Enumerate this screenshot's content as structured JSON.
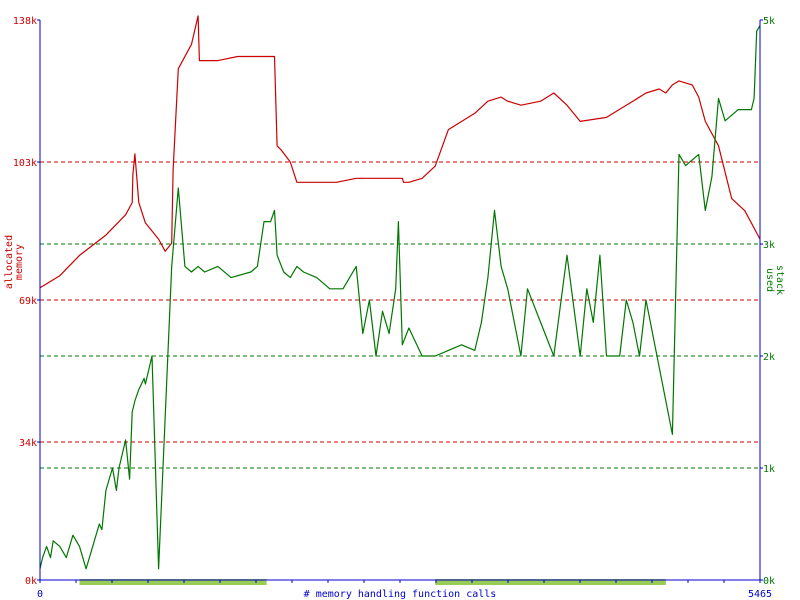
{
  "chart_data": {
    "type": "line",
    "title": "",
    "xlabel": "# memory handling function calls",
    "xlim": [
      0,
      5465
    ],
    "x_ticks": [
      "0",
      "5465"
    ],
    "left_axis": {
      "label": "allocated memory",
      "label_lines": [
        "allocated",
        "memory"
      ],
      "range_k": [
        0,
        138
      ],
      "ticks": [
        {
          "value": 0,
          "label": "0k"
        },
        {
          "value": 34,
          "label": "34k"
        },
        {
          "value": 69,
          "label": "69k"
        },
        {
          "value": 103,
          "label": "103k"
        },
        {
          "value": 138,
          "label": "138k"
        }
      ],
      "color": "#cc0000"
    },
    "right_axis": {
      "label": "used stack",
      "label_lines": [
        "used",
        "stack"
      ],
      "range_k": [
        0,
        5
      ],
      "ticks": [
        {
          "value": 0,
          "label": "0k"
        },
        {
          "value": 1,
          "label": "1k"
        },
        {
          "value": 2,
          "label": "2k"
        },
        {
          "value": 3,
          "label": "3k"
        },
        {
          "value": 5,
          "label": "5k"
        }
      ],
      "color": "#007700"
    },
    "grid": "dashed horizontal lines at tick values",
    "series": [
      {
        "name": "allocated memory",
        "axis": "left",
        "color": "#cc0000",
        "x": [
          0,
          150,
          300,
          500,
          650,
          700,
          705,
          720,
          750,
          800,
          900,
          950,
          1000,
          1010,
          1050,
          1150,
          1200,
          1210,
          1250,
          1300,
          1350,
          1500,
          1600,
          1700,
          1750,
          1780,
          1800,
          1830,
          1900,
          1950,
          2000,
          2050,
          2100,
          2250,
          2400,
          2600,
          2720,
          2750,
          2760,
          2800,
          2900,
          3000,
          3100,
          3300,
          3400,
          3500,
          3550,
          3650,
          3800,
          3900,
          4000,
          4100,
          4300,
          4400,
          4500,
          4600,
          4700,
          4750,
          4800,
          4850,
          4950,
          5000,
          5050,
          5150,
          5250,
          5350,
          5465
        ],
        "y": [
          72,
          75,
          80,
          85,
          90,
          93,
          100,
          105,
          93,
          88,
          84,
          81,
          83,
          101,
          126,
          132,
          139,
          128,
          128,
          128,
          128,
          129,
          129,
          129,
          129,
          129,
          107,
          106,
          103,
          98,
          98,
          98,
          98,
          98,
          99,
          99,
          99,
          99,
          98,
          98,
          99,
          102,
          111,
          115,
          118,
          119,
          118,
          117,
          118,
          120,
          117,
          113,
          114,
          116,
          118,
          120,
          121,
          120,
          122,
          123,
          122,
          119,
          113,
          107,
          94,
          91,
          84
        ]
      },
      {
        "name": "used stack",
        "axis": "right",
        "color": "#007700",
        "x": [
          0,
          20,
          50,
          80,
          100,
          150,
          200,
          250,
          300,
          350,
          400,
          450,
          470,
          500,
          550,
          580,
          600,
          650,
          680,
          700,
          720,
          750,
          790,
          800,
          850,
          900,
          1000,
          1050,
          1100,
          1150,
          1200,
          1250,
          1350,
          1450,
          1600,
          1650,
          1700,
          1750,
          1780,
          1800,
          1850,
          1900,
          1950,
          2000,
          2100,
          2200,
          2300,
          2400,
          2450,
          2500,
          2550,
          2600,
          2650,
          2700,
          2720,
          2750,
          2800,
          2900,
          3000,
          3100,
          3200,
          3300,
          3350,
          3400,
          3450,
          3500,
          3550,
          3600,
          3650,
          3700,
          3800,
          3900,
          4000,
          4100,
          4150,
          4200,
          4250,
          4300,
          4400,
          4450,
          4500,
          4550,
          4600,
          4700,
          4800,
          4850,
          4900,
          4950,
          5000,
          5050,
          5100,
          5150,
          5200,
          5250,
          5300,
          5350,
          5400,
          5420,
          5440,
          5465
        ],
        "y": [
          0.1,
          0.2,
          0.3,
          0.2,
          0.35,
          0.3,
          0.2,
          0.4,
          0.3,
          0.1,
          0.3,
          0.5,
          0.45,
          0.8,
          1.0,
          0.8,
          1.0,
          1.25,
          0.9,
          1.5,
          1.6,
          1.7,
          1.8,
          1.75,
          2.0,
          0.1,
          2.8,
          3.5,
          2.8,
          2.75,
          2.8,
          2.75,
          2.8,
          2.7,
          2.75,
          2.8,
          3.2,
          3.2,
          3.3,
          2.9,
          2.75,
          2.7,
          2.8,
          2.75,
          2.7,
          2.6,
          2.6,
          2.8,
          2.2,
          2.5,
          2.0,
          2.4,
          2.2,
          2.6,
          3.2,
          2.1,
          2.25,
          2.0,
          2.0,
          2.05,
          2.1,
          2.05,
          2.3,
          2.7,
          3.3,
          2.8,
          2.6,
          2.3,
          2.0,
          2.6,
          2.3,
          2.0,
          2.9,
          2.0,
          2.6,
          2.3,
          2.9,
          2.0,
          2.0,
          2.5,
          2.3,
          2.0,
          2.5,
          1.9,
          1.3,
          3.8,
          3.7,
          3.75,
          3.8,
          3.3,
          3.6,
          4.3,
          4.1,
          4.15,
          4.2,
          4.2,
          4.2,
          4.3,
          4.9,
          4.95
        ]
      }
    ]
  },
  "x_bar": {
    "color": "#99cc55",
    "segments": [
      [
        300,
        1720
      ],
      [
        3000,
        4750
      ]
    ]
  },
  "colors": {
    "memory": "#cc0000",
    "stack": "#007700",
    "axis": "#0000cc",
    "bar": "#99cc55"
  }
}
